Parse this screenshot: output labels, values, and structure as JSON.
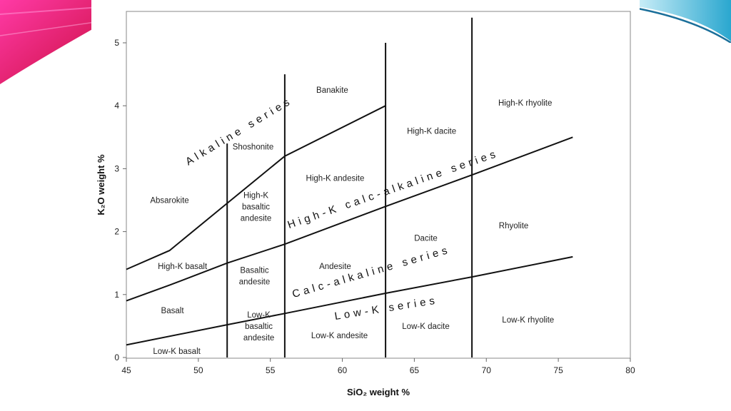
{
  "chart_data": {
    "type": "line",
    "xlabel": "SiO₂ weight %",
    "ylabel": "K₂O weight %",
    "xlim": [
      45,
      80
    ],
    "ylim": [
      0,
      5.5
    ],
    "x_ticks": [
      45,
      50,
      55,
      60,
      65,
      70,
      75,
      80
    ],
    "y_ticks": [
      0,
      1,
      2,
      3,
      4,
      5
    ],
    "grid": false,
    "boundaries": [
      {
        "name": "Low-K / Calc-alkaline boundary",
        "points": [
          [
            45,
            0.2
          ],
          [
            52,
            0.52
          ],
          [
            56,
            0.7
          ],
          [
            63,
            1.02
          ],
          [
            69,
            1.28
          ],
          [
            76,
            1.6
          ]
        ]
      },
      {
        "name": "Calc-alkaline / High-K boundary",
        "points": [
          [
            45,
            0.9
          ],
          [
            48,
            1.15
          ],
          [
            52,
            1.5
          ],
          [
            56,
            1.8
          ],
          [
            63,
            2.4
          ],
          [
            69,
            2.9
          ],
          [
            76,
            3.5
          ]
        ]
      },
      {
        "name": "High-K / Shoshonite boundary",
        "points": [
          [
            45,
            1.4
          ],
          [
            48,
            1.7
          ],
          [
            52,
            2.45
          ],
          [
            56,
            3.2
          ],
          [
            63,
            4.0
          ]
        ]
      },
      {
        "name": "SiO2 52% divider",
        "points": [
          [
            52,
            0
          ],
          [
            52,
            3.4
          ]
        ]
      },
      {
        "name": "SiO2 56% divider",
        "points": [
          [
            56,
            0
          ],
          [
            56,
            4.5
          ]
        ]
      },
      {
        "name": "SiO2 63% divider",
        "points": [
          [
            63,
            0
          ],
          [
            63,
            5.0
          ]
        ]
      },
      {
        "name": "SiO2 69% divider",
        "points": [
          [
            69,
            0
          ],
          [
            69,
            5.4
          ]
        ]
      }
    ],
    "fields": [
      {
        "label": [
          "Absarokite"
        ],
        "x": 48.0,
        "y": 2.5
      },
      {
        "label": [
          "Shoshonite"
        ],
        "x": 53.8,
        "y": 3.35
      },
      {
        "label": [
          "Banakite"
        ],
        "x": 59.3,
        "y": 4.25
      },
      {
        "label": [
          "High-K basalt"
        ],
        "x": 48.9,
        "y": 1.45
      },
      {
        "label": [
          "Basalt"
        ],
        "x": 48.2,
        "y": 0.75
      },
      {
        "label": [
          "Low-K basalt"
        ],
        "x": 48.5,
        "y": 0.1
      },
      {
        "label": [
          "High-K",
          "basaltic",
          "andesite"
        ],
        "x": 54.0,
        "y": 2.4
      },
      {
        "label": [
          "Basaltic",
          "andesite"
        ],
        "x": 53.9,
        "y": 1.3
      },
      {
        "label": [
          "Low-K",
          "basaltic",
          "andesite"
        ],
        "x": 54.2,
        "y": 0.5
      },
      {
        "label": [
          "High-K andesite"
        ],
        "x": 59.5,
        "y": 2.85
      },
      {
        "label": [
          "Andesite"
        ],
        "x": 59.5,
        "y": 1.45
      },
      {
        "label": [
          "Low-K andesite"
        ],
        "x": 59.8,
        "y": 0.35
      },
      {
        "label": [
          "High-K dacite"
        ],
        "x": 66.2,
        "y": 3.6
      },
      {
        "label": [
          "Dacite"
        ],
        "x": 65.8,
        "y": 1.9
      },
      {
        "label": [
          "Low-K dacite"
        ],
        "x": 65.8,
        "y": 0.5
      },
      {
        "label": [
          "High-K rhyolite"
        ],
        "x": 72.7,
        "y": 4.05
      },
      {
        "label": [
          "Rhyolite"
        ],
        "x": 71.9,
        "y": 2.1
      },
      {
        "label": [
          "Low-K rhyolite"
        ],
        "x": 72.9,
        "y": 0.6
      }
    ],
    "series_labels": [
      {
        "text": "Alkaline series",
        "x": 49.3,
        "y": 3.05,
        "angle": -31
      },
      {
        "text": "High-K calc-alkaline series",
        "x": 56.3,
        "y": 2.05,
        "angle": -19
      },
      {
        "text": "Calc-alkaline series",
        "x": 56.6,
        "y": 0.95,
        "angle": -16
      },
      {
        "text": "Low-K series",
        "x": 59.5,
        "y": 0.6,
        "angle": -9
      }
    ]
  }
}
